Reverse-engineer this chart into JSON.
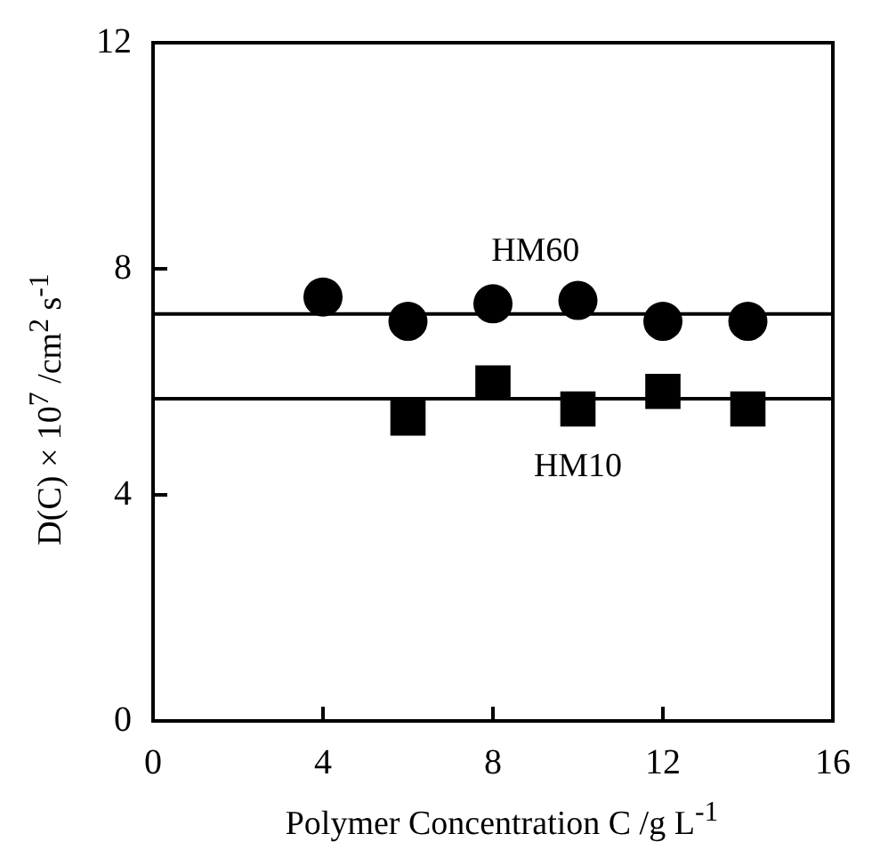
{
  "chart_data": {
    "type": "scatter",
    "xlabel": "Polymer Concentration C /g L$^{-1}$",
    "ylabel": "D(C) × 10$^{7}$ /cm$^{2}$ s$^{-1}$",
    "series": [
      {
        "name": "HM60",
        "color": "#000000",
        "marker": "circle",
        "x": [
          4,
          6,
          8,
          10,
          12,
          14
        ],
        "values": [
          7.5,
          7.07,
          7.38,
          7.44,
          7.07,
          7.07
        ]
      },
      {
        "name": "HM10",
        "color": "#000000",
        "marker": "square",
        "x": [
          6,
          8,
          10,
          12,
          14
        ],
        "values": [
          5.36,
          5.98,
          5.52,
          5.83,
          5.52
        ]
      },
      {
        "type": "line",
        "color": "#000000",
        "line_style": "solid",
        "x": [
          0,
          16
        ],
        "values": [
          7.2,
          7.2
        ]
      },
      {
        "type": "line",
        "color": "#000000",
        "line_style": "solid",
        "x": [
          0,
          16
        ],
        "values": [
          5.7,
          5.7
        ]
      }
    ],
    "xlim": [
      0,
      16
    ],
    "xticks": [
      0,
      4,
      8,
      12,
      16
    ],
    "ylim": [
      0,
      12
    ],
    "yticks": [
      0,
      4,
      8,
      12
    ],
    "grid": false,
    "legend": false
  }
}
